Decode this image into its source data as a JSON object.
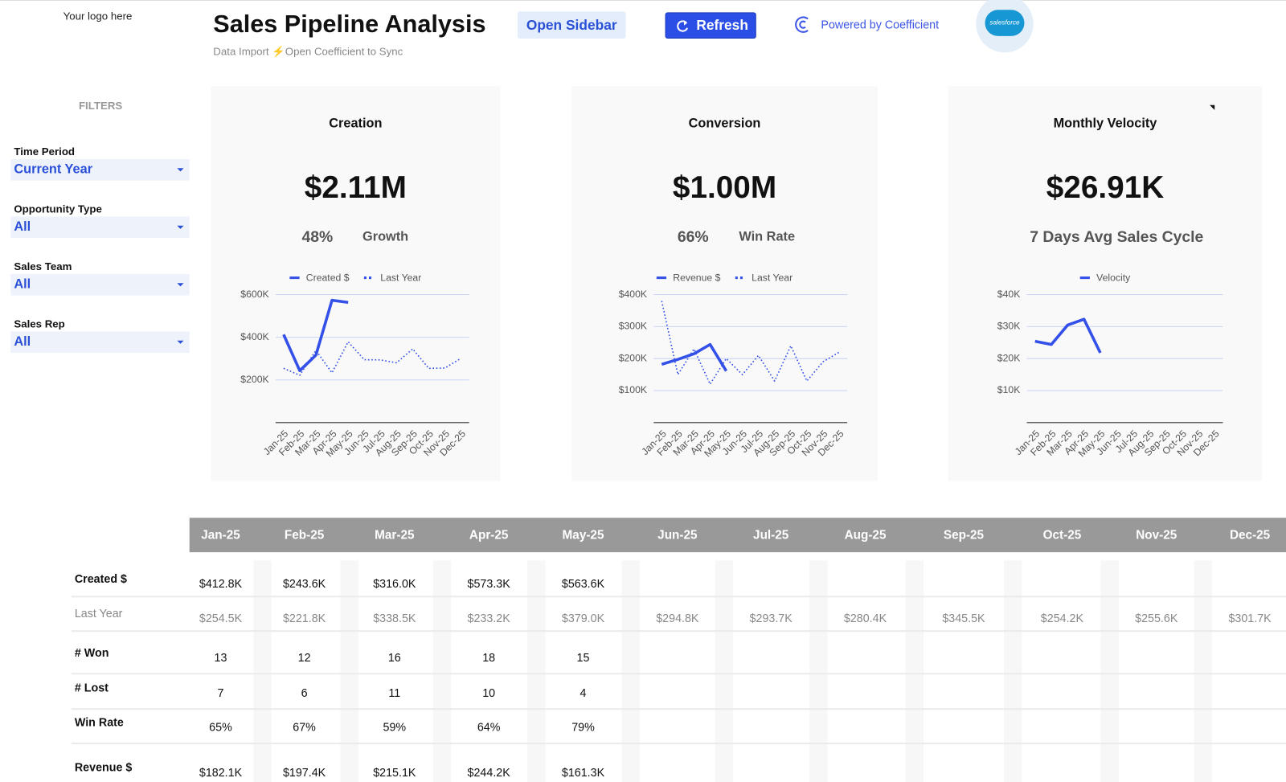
{
  "header": {
    "logo": "Your logo here",
    "title": "Sales Pipeline Analysis",
    "subtitle": "Data Import ⚡Open Coefficient to Sync",
    "open_sidebar": "Open Sidebar",
    "refresh": "Refresh",
    "powered_by": "Powered by Coefficient",
    "salesforce": "salesforce"
  },
  "filters": {
    "heading": "FILTERS",
    "items": [
      {
        "label": "Time Period",
        "value": "Current Year"
      },
      {
        "label": "Opportunity Type",
        "value": "All"
      },
      {
        "label": "Sales Team",
        "value": "All"
      },
      {
        "label": "Sales Rep",
        "value": "All"
      }
    ]
  },
  "chart_data": [
    {
      "type": "line",
      "title": "Creation",
      "headline": "$2.11M",
      "metric": "48%",
      "metric_label": "Growth",
      "categories": [
        "Jan-25",
        "Feb-25",
        "Mar-25",
        "Apr-25",
        "May-25",
        "Jun-25",
        "Jul-25",
        "Aug-25",
        "Sep-25",
        "Oct-25",
        "Nov-25",
        "Dec-25"
      ],
      "series": [
        {
          "name": "Created $",
          "color": "#3350e8",
          "style": "solid",
          "values": [
            412800,
            243600,
            316000,
            573300,
            563600,
            null,
            null,
            null,
            null,
            null,
            null,
            null
          ]
        },
        {
          "name": "Last Year",
          "color": "#3350e8",
          "style": "dotted",
          "values": [
            254500,
            221800,
            338500,
            233200,
            379000,
            294800,
            293700,
            280400,
            345500,
            254200,
            255600,
            301700
          ]
        }
      ],
      "ylim": [
        0,
        600000
      ],
      "yticks": [
        {
          "value": 200000,
          "label": "$200K"
        },
        {
          "value": 400000,
          "label": "$400K"
        },
        {
          "value": 600000,
          "label": "$600K"
        }
      ],
      "grid": true
    },
    {
      "type": "line",
      "title": "Conversion",
      "headline": "$1.00M",
      "metric": "66%",
      "metric_label": "Win Rate",
      "categories": [
        "Jan-25",
        "Feb-25",
        "Mar-25",
        "Apr-25",
        "May-25",
        "Jun-25",
        "Jul-25",
        "Aug-25",
        "Sep-25",
        "Oct-25",
        "Nov-25",
        "Dec-25"
      ],
      "series": [
        {
          "name": "Revenue $",
          "color": "#3350e8",
          "style": "solid",
          "values": [
            182100,
            197400,
            215100,
            244200,
            161300,
            null,
            null,
            null,
            null,
            null,
            null,
            null
          ]
        },
        {
          "name": "Last Year",
          "color": "#3350e8",
          "style": "dotted",
          "values": [
            380000,
            150000,
            230000,
            120000,
            200000,
            150000,
            210000,
            130000,
            240000,
            130000,
            190000,
            220000
          ]
        }
      ],
      "ylim": [
        0,
        400000
      ],
      "yticks": [
        {
          "value": 100000,
          "label": "$100K"
        },
        {
          "value": 200000,
          "label": "$200K"
        },
        {
          "value": 300000,
          "label": "$300K"
        },
        {
          "value": 400000,
          "label": "$400K"
        }
      ],
      "grid": true
    },
    {
      "type": "line",
      "title": "Monthly Velocity",
      "headline": "$26.91K",
      "subtitle": "7 Days Avg Sales Cycle",
      "categories": [
        "Jan-25",
        "Feb-25",
        "Mar-25",
        "Apr-25",
        "May-25",
        "Jun-25",
        "Jul-25",
        "Aug-25",
        "Sep-25",
        "Oct-25",
        "Nov-25",
        "Dec-25"
      ],
      "series": [
        {
          "name": "Velocity",
          "color": "#3350e8",
          "style": "solid",
          "values": [
            25400,
            24400,
            30500,
            32300,
            21800,
            null,
            null,
            null,
            null,
            null,
            null,
            null
          ]
        }
      ],
      "ylim": [
        0,
        40000
      ],
      "yticks": [
        {
          "value": 10000,
          "label": "$10K"
        },
        {
          "value": 20000,
          "label": "$20K"
        },
        {
          "value": 30000,
          "label": "$30K"
        },
        {
          "value": 40000,
          "label": "$40K"
        }
      ],
      "grid": true
    }
  ],
  "table": {
    "columns": [
      "Jan-25",
      "Feb-25",
      "Mar-25",
      "Apr-25",
      "May-25",
      "Jun-25",
      "Jul-25",
      "Aug-25",
      "Sep-25",
      "Oct-25",
      "Nov-25",
      "Dec-25"
    ],
    "rows": [
      {
        "label": "Created $",
        "cells": [
          "$412.8K",
          "$243.6K",
          "$316.0K",
          "$573.3K",
          "$563.6K",
          null,
          null,
          null,
          null,
          null,
          null,
          null
        ]
      },
      {
        "label": "Last Year",
        "cells": [
          "$254.5K",
          "$221.8K",
          "$338.5K",
          "$233.2K",
          "$379.0K",
          "$294.8K",
          "$293.7K",
          "$280.4K",
          "$345.5K",
          "$254.2K",
          "$255.6K",
          "$301.7K"
        ]
      },
      {
        "label": "# Won",
        "cells": [
          "13",
          "12",
          "16",
          "18",
          "15",
          null,
          null,
          null,
          null,
          null,
          null,
          null
        ]
      },
      {
        "label": "# Lost",
        "cells": [
          "7",
          "6",
          "11",
          "10",
          "4",
          null,
          null,
          null,
          null,
          null,
          null,
          null
        ]
      },
      {
        "label": "Win Rate",
        "cells": [
          "65%",
          "67%",
          "59%",
          "64%",
          "79%",
          null,
          null,
          null,
          null,
          null,
          null,
          null
        ]
      },
      {
        "label": "Revenue $",
        "cells": [
          "$182.1K",
          "$197.4K",
          "$215.1K",
          "$244.2K",
          "$161.3K",
          null,
          null,
          null,
          null,
          null,
          null,
          null
        ]
      }
    ]
  }
}
